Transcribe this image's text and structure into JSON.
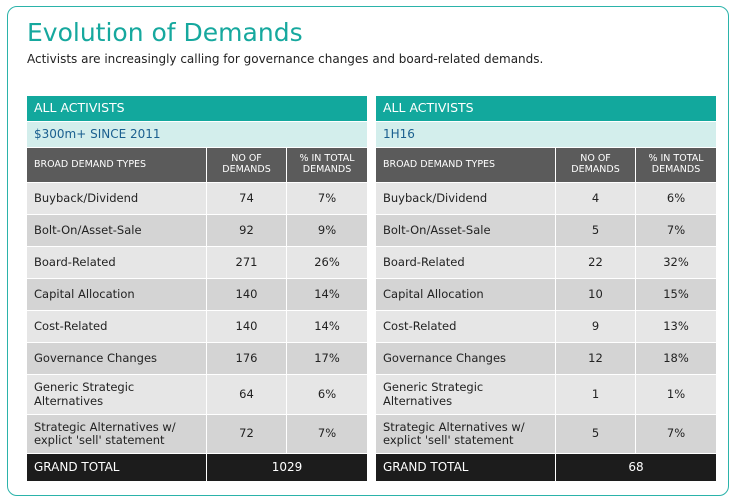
{
  "header": {
    "title": "Evolution of Demands",
    "subtitle": "Activists are increasingly calling for governance changes and board-related demands."
  },
  "tables": [
    {
      "header": "ALL ACTIVISTS",
      "subheader": "$300m+ SINCE 2011",
      "columns": [
        "BROAD DEMAND TYPES",
        "NO OF\nDEMANDS",
        "% IN TOTAL\nDEMANDS"
      ],
      "rows": [
        [
          "Buyback/Dividend",
          "74",
          "7%"
        ],
        [
          "Bolt-On/Asset-Sale",
          "92",
          "9%"
        ],
        [
          "Board-Related",
          "271",
          "26%"
        ],
        [
          "Capital Allocation",
          "140",
          "14%"
        ],
        [
          "Cost-Related",
          "140",
          "14%"
        ],
        [
          "Governance Changes",
          "176",
          "17%"
        ],
        [
          "Generic Strategic\nAlternatives",
          "64",
          "6%"
        ],
        [
          "Strategic Alternatives w/\nexplict 'sell' statement",
          "72",
          "7%"
        ]
      ],
      "total_label": "GRAND TOTAL",
      "total": "1029"
    },
    {
      "header": "ALL ACTIVISTS",
      "subheader": "1H16",
      "columns": [
        "BROAD DEMAND TYPES",
        "NO OF\nDEMANDS",
        "% IN TOTAL\nDEMANDS"
      ],
      "rows": [
        [
          "Buyback/Dividend",
          "4",
          "6%"
        ],
        [
          "Bolt-On/Asset-Sale",
          "5",
          "7%"
        ],
        [
          "Board-Related",
          "22",
          "32%"
        ],
        [
          "Capital Allocation",
          "10",
          "15%"
        ],
        [
          "Cost-Related",
          "9",
          "13%"
        ],
        [
          "Governance Changes",
          "12",
          "18%"
        ],
        [
          "Generic Strategic\nAlternatives",
          "1",
          "1%"
        ],
        [
          "Strategic Alternatives w/\nexplict 'sell' statement",
          "5",
          "7%"
        ]
      ],
      "total_label": "GRAND TOTAL",
      "total": "68"
    }
  ]
}
